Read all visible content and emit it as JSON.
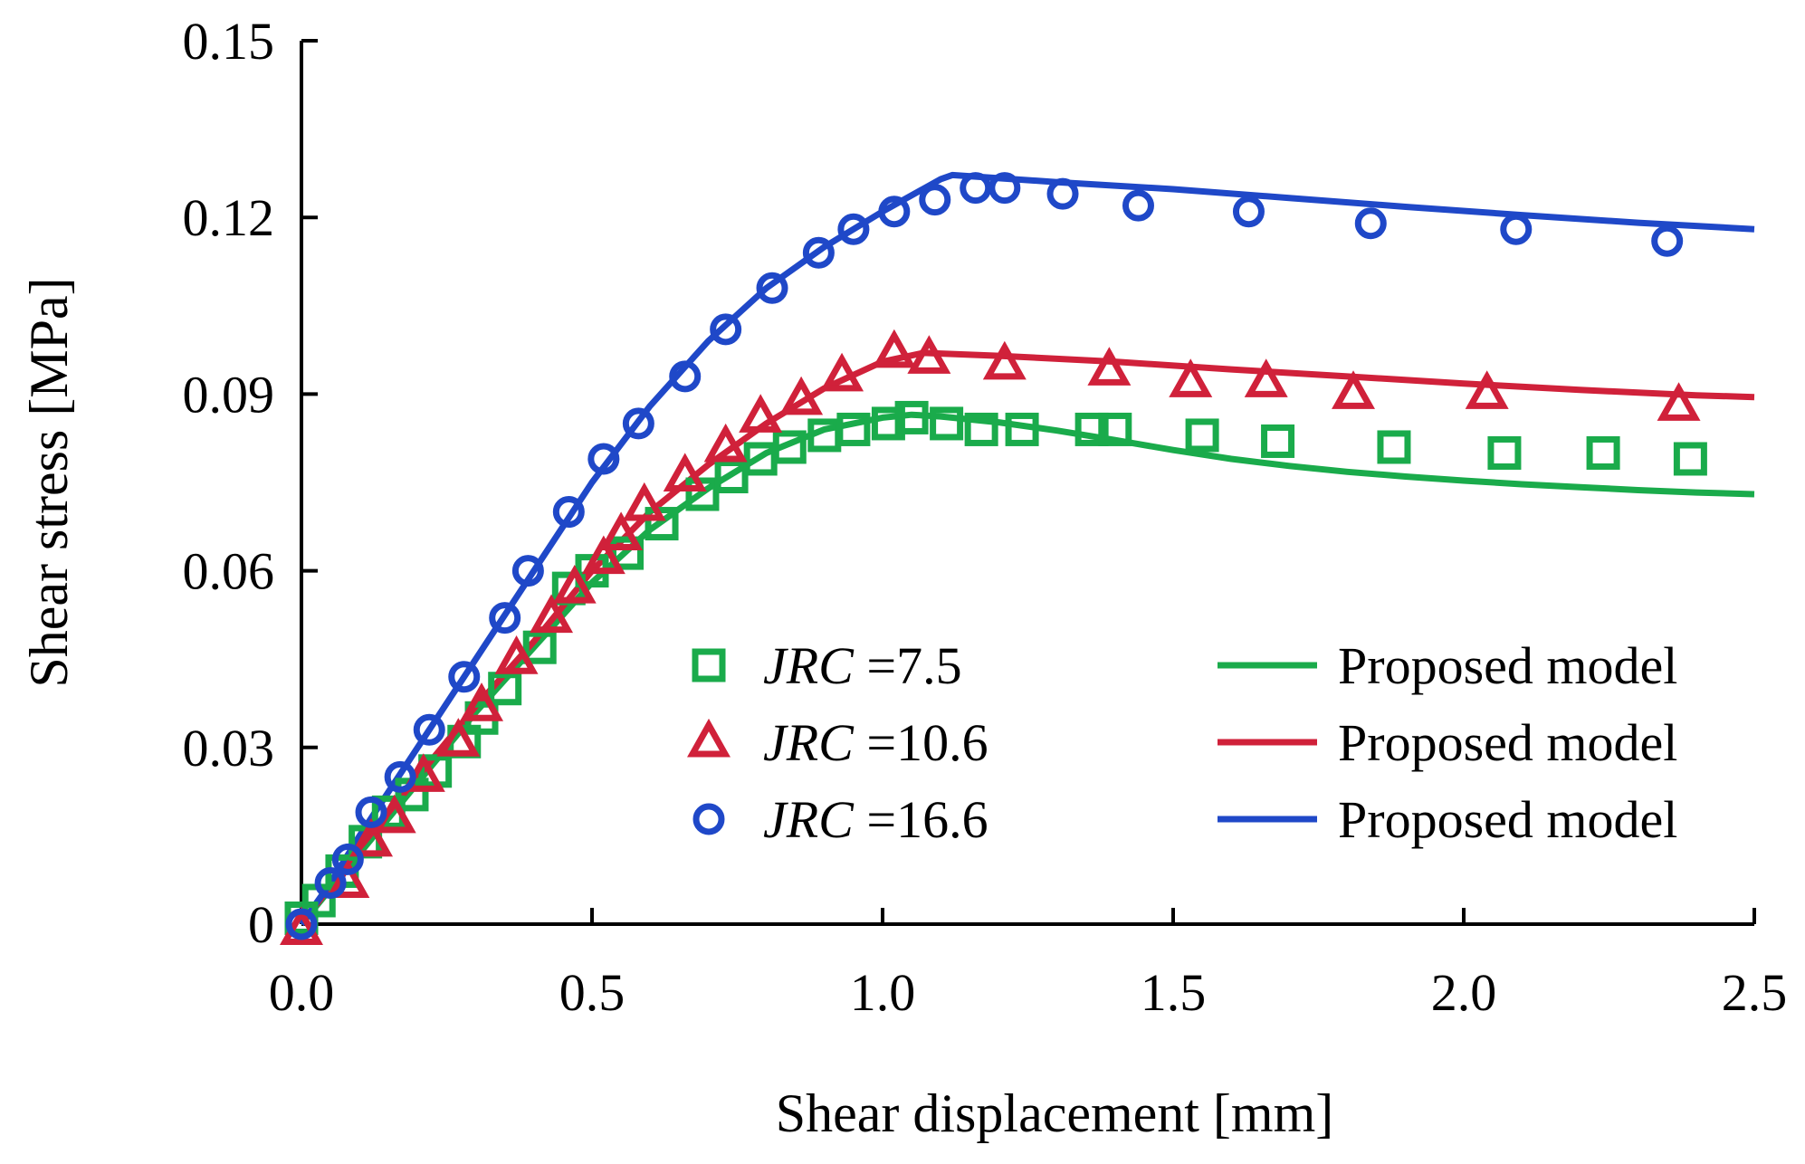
{
  "chart_data": {
    "type": "scatter",
    "title": "",
    "xlabel": "Shear displacement [mm]",
    "ylabel": "Shear stress [MPa]",
    "xlim": [
      0,
      2.5
    ],
    "ylim": [
      0,
      0.15
    ],
    "xticks": [
      0,
      0.5,
      1.0,
      1.5,
      2.0,
      2.5
    ],
    "xtick_labels": [
      "0.0",
      "0.5",
      "1.0",
      "1.5",
      "2.0",
      "2.5"
    ],
    "yticks": [
      0,
      0.03,
      0.06,
      0.09,
      0.12,
      0.15
    ],
    "ytick_labels": [
      "0",
      "0.03",
      "0.06",
      "0.09",
      "0.12",
      "0.15"
    ],
    "grid": false,
    "legend_position": "center-right",
    "series": [
      {
        "name": "JRC =7.5",
        "legend_italic": "JRC",
        "legend_value": " =7.5",
        "color": "#1aab4b",
        "marker": "square",
        "points": [
          [
            0,
            0.001
          ],
          [
            0.03,
            0.004
          ],
          [
            0.07,
            0.009
          ],
          [
            0.11,
            0.014
          ],
          [
            0.15,
            0.019
          ],
          [
            0.19,
            0.022
          ],
          [
            0.23,
            0.026
          ],
          [
            0.28,
            0.031
          ],
          [
            0.31,
            0.035
          ],
          [
            0.35,
            0.04
          ],
          [
            0.41,
            0.047
          ],
          [
            0.46,
            0.057
          ],
          [
            0.5,
            0.06
          ],
          [
            0.56,
            0.063
          ],
          [
            0.62,
            0.068
          ],
          [
            0.69,
            0.073
          ],
          [
            0.74,
            0.076
          ],
          [
            0.79,
            0.079
          ],
          [
            0.84,
            0.081
          ],
          [
            0.9,
            0.083
          ],
          [
            0.95,
            0.084
          ],
          [
            1.01,
            0.085
          ],
          [
            1.05,
            0.086
          ],
          [
            1.11,
            0.085
          ],
          [
            1.17,
            0.084
          ],
          [
            1.24,
            0.084
          ],
          [
            1.36,
            0.084
          ],
          [
            1.4,
            0.084
          ],
          [
            1.55,
            0.083
          ],
          [
            1.68,
            0.082
          ],
          [
            1.88,
            0.081
          ],
          [
            2.07,
            0.08
          ],
          [
            2.24,
            0.08
          ],
          [
            2.39,
            0.079
          ]
        ]
      },
      {
        "name": "JRC =10.6",
        "legend_italic": "JRC",
        "legend_value": " =10.6",
        "color": "#d0213a",
        "marker": "triangle",
        "points": [
          [
            0,
            -0.001
          ],
          [
            0.08,
            0.007
          ],
          [
            0.12,
            0.014
          ],
          [
            0.16,
            0.018
          ],
          [
            0.21,
            0.025
          ],
          [
            0.27,
            0.031
          ],
          [
            0.31,
            0.037
          ],
          [
            0.37,
            0.045
          ],
          [
            0.43,
            0.052
          ],
          [
            0.47,
            0.057
          ],
          [
            0.52,
            0.062
          ],
          [
            0.55,
            0.066
          ],
          [
            0.59,
            0.071
          ],
          [
            0.66,
            0.076
          ],
          [
            0.73,
            0.081
          ],
          [
            0.79,
            0.086
          ],
          [
            0.86,
            0.089
          ],
          [
            0.93,
            0.093
          ],
          [
            1.02,
            0.097
          ],
          [
            1.08,
            0.096
          ],
          [
            1.21,
            0.095
          ],
          [
            1.39,
            0.094
          ],
          [
            1.53,
            0.092
          ],
          [
            1.66,
            0.092
          ],
          [
            1.81,
            0.09
          ],
          [
            2.04,
            0.09
          ],
          [
            2.37,
            0.088
          ]
        ]
      },
      {
        "name": "JRC =16.6",
        "legend_italic": "JRC",
        "legend_value": " =16.6",
        "color": "#1f48c8",
        "marker": "circle",
        "points": [
          [
            0,
            0
          ],
          [
            0.05,
            0.007
          ],
          [
            0.08,
            0.011
          ],
          [
            0.12,
            0.019
          ],
          [
            0.17,
            0.025
          ],
          [
            0.22,
            0.033
          ],
          [
            0.28,
            0.042
          ],
          [
            0.35,
            0.052
          ],
          [
            0.39,
            0.06
          ],
          [
            0.46,
            0.07
          ],
          [
            0.52,
            0.079
          ],
          [
            0.58,
            0.085
          ],
          [
            0.66,
            0.093
          ],
          [
            0.73,
            0.101
          ],
          [
            0.81,
            0.108
          ],
          [
            0.89,
            0.114
          ],
          [
            0.95,
            0.118
          ],
          [
            1.02,
            0.121
          ],
          [
            1.09,
            0.123
          ],
          [
            1.16,
            0.125
          ],
          [
            1.21,
            0.125
          ],
          [
            1.31,
            0.124
          ],
          [
            1.44,
            0.122
          ],
          [
            1.63,
            0.121
          ],
          [
            1.84,
            0.119
          ],
          [
            2.09,
            0.118
          ],
          [
            2.35,
            0.116
          ]
        ]
      }
    ],
    "model_lines": [
      {
        "name": "Proposed model",
        "color": "#1aab4b",
        "points": [
          [
            0,
            0
          ],
          [
            0.1,
            0.012
          ],
          [
            0.2,
            0.024
          ],
          [
            0.3,
            0.036
          ],
          [
            0.4,
            0.047
          ],
          [
            0.5,
            0.058
          ],
          [
            0.6,
            0.067
          ],
          [
            0.7,
            0.074
          ],
          [
            0.8,
            0.08
          ],
          [
            0.9,
            0.084
          ],
          [
            1.0,
            0.086
          ],
          [
            1.05,
            0.0865
          ],
          [
            1.1,
            0.0862
          ],
          [
            1.2,
            0.0852
          ],
          [
            1.3,
            0.0838
          ],
          [
            1.4,
            0.0822
          ],
          [
            1.5,
            0.0805
          ],
          [
            1.6,
            0.079
          ],
          [
            1.7,
            0.0778
          ],
          [
            1.8,
            0.0768
          ],
          [
            1.9,
            0.076
          ],
          [
            2.0,
            0.0753
          ],
          [
            2.1,
            0.0747
          ],
          [
            2.2,
            0.0742
          ],
          [
            2.3,
            0.0737
          ],
          [
            2.4,
            0.0733
          ],
          [
            2.5,
            0.073
          ]
        ]
      },
      {
        "name": "Proposed model",
        "color": "#d0213a",
        "points": [
          [
            0,
            0
          ],
          [
            0.1,
            0.013
          ],
          [
            0.2,
            0.025
          ],
          [
            0.3,
            0.037
          ],
          [
            0.4,
            0.048
          ],
          [
            0.5,
            0.06
          ],
          [
            0.6,
            0.07
          ],
          [
            0.7,
            0.078
          ],
          [
            0.8,
            0.085
          ],
          [
            0.9,
            0.091
          ],
          [
            1.0,
            0.0955
          ],
          [
            1.07,
            0.097
          ],
          [
            1.2,
            0.0965
          ],
          [
            1.4,
            0.0955
          ],
          [
            1.6,
            0.0942
          ],
          [
            1.8,
            0.093
          ],
          [
            2.0,
            0.0918
          ],
          [
            2.2,
            0.0907
          ],
          [
            2.4,
            0.0898
          ],
          [
            2.5,
            0.0895
          ]
        ]
      },
      {
        "name": "Proposed model",
        "color": "#1f48c8",
        "points": [
          [
            0,
            0
          ],
          [
            0.05,
            0.007
          ],
          [
            0.1,
            0.015
          ],
          [
            0.2,
            0.03
          ],
          [
            0.3,
            0.045
          ],
          [
            0.4,
            0.06
          ],
          [
            0.5,
            0.075
          ],
          [
            0.6,
            0.088
          ],
          [
            0.7,
            0.099
          ],
          [
            0.8,
            0.108
          ],
          [
            0.9,
            0.115
          ],
          [
            1.0,
            0.121
          ],
          [
            1.1,
            0.1265
          ],
          [
            1.12,
            0.1272
          ],
          [
            1.3,
            0.126
          ],
          [
            1.5,
            0.1248
          ],
          [
            1.7,
            0.1233
          ],
          [
            1.9,
            0.1218
          ],
          [
            2.1,
            0.1204
          ],
          [
            2.3,
            0.1191
          ],
          [
            2.5,
            0.118
          ]
        ]
      }
    ]
  }
}
